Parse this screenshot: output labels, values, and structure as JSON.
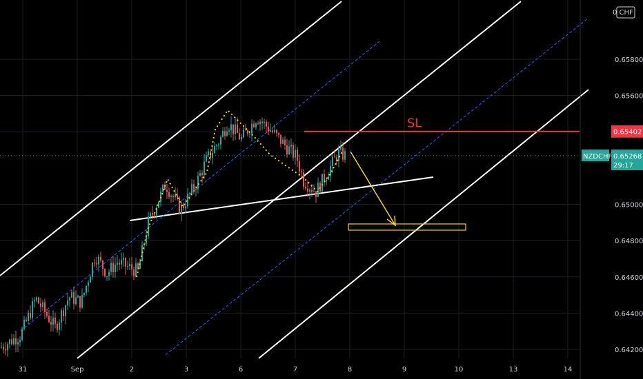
{
  "chart_data": {
    "type": "candlestick",
    "symbol": "NZDCHF",
    "currency": "CHF",
    "y_ticks": [
      "0.65800",
      "0.65600",
      "0.65400",
      "0.65000",
      "0.64800",
      "0.64600",
      "0.64400",
      "0.64200"
    ],
    "y_tick_values": [
      0.658,
      0.656,
      0.654,
      0.65,
      0.648,
      0.646,
      0.644,
      0.642
    ],
    "ylim": [
      0.6418,
      0.6594
    ],
    "x_ticks": [
      "31",
      "Sep",
      "2",
      "3",
      "6",
      "7",
      "8",
      "9",
      "10",
      "13",
      "14"
    ],
    "last_price": {
      "label": "0.65268",
      "value": 0.65268,
      "countdown": "29:17"
    },
    "stop_loss": {
      "label": "0.65402",
      "value": 0.65402,
      "text": "SL"
    },
    "colors": {
      "up": "#26a69a",
      "down": "#ef5350",
      "channel": "#ffffff",
      "mid": "#2962ff",
      "sl": "#f23645",
      "target": "#f7d21b",
      "last": "#26a69a",
      "grid": "#1c1f27"
    }
  }
}
